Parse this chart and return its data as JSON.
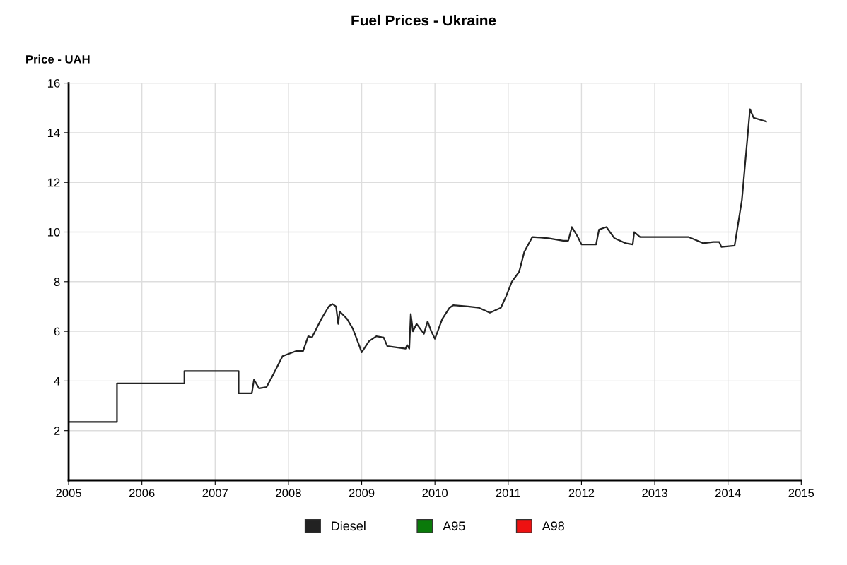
{
  "chart_data": {
    "type": "line",
    "title": "Fuel Prices - Ukraine",
    "ylabel": "Price - UAH",
    "xlim": [
      2005,
      2015
    ],
    "xticks": [
      2005,
      2006,
      2007,
      2008,
      2009,
      2010,
      2011,
      2012,
      2013,
      2014,
      2015
    ],
    "ylim": [
      0,
      16
    ],
    "yticks": [
      2,
      4,
      6,
      8,
      10,
      12,
      14,
      16
    ],
    "grid": true,
    "legend": "bottom",
    "marker": "none",
    "line_style": "solid",
    "series": [
      {
        "name": "Diesel",
        "color": "#222222",
        "x": [
          2005.0,
          2005.66,
          2005.66,
          2006.58,
          2006.58,
          2007.32,
          2007.32,
          2007.5,
          2007.53,
          2007.6,
          2007.7,
          2007.8,
          2007.92,
          2008.1,
          2008.2,
          2008.27,
          2008.32,
          2008.45,
          2008.55,
          2008.6,
          2008.65,
          2008.68,
          2008.7,
          2008.8,
          2008.88,
          2008.97,
          2009.0,
          2009.1,
          2009.2,
          2009.3,
          2009.35,
          2009.6,
          2009.62,
          2009.65,
          2009.67,
          2009.7,
          2009.75,
          2009.85,
          2009.9,
          2009.95,
          2010.0,
          2010.1,
          2010.2,
          2010.25,
          2010.45,
          2010.6,
          2010.75,
          2010.9,
          2010.97,
          2011.05,
          2011.15,
          2011.22,
          2011.33,
          2011.55,
          2011.75,
          2011.82,
          2011.87,
          2011.95,
          2012.0,
          2012.2,
          2012.24,
          2012.34,
          2012.45,
          2012.6,
          2012.7,
          2012.72,
          2012.8,
          2013.3,
          2013.46,
          2013.66,
          2013.8,
          2013.88,
          2013.91,
          2014.09,
          2014.12,
          2014.19,
          2014.3,
          2014.35,
          2014.52
        ],
        "values": [
          2.35,
          2.35,
          3.9,
          3.9,
          4.4,
          4.4,
          3.5,
          3.5,
          4.05,
          3.7,
          3.75,
          4.3,
          5.0,
          5.2,
          5.2,
          5.8,
          5.75,
          6.5,
          7.0,
          7.1,
          7.0,
          6.3,
          6.8,
          6.5,
          6.1,
          5.4,
          5.15,
          5.6,
          5.8,
          5.75,
          5.4,
          5.3,
          5.45,
          5.3,
          6.7,
          6.0,
          6.3,
          5.9,
          6.4,
          6.0,
          5.7,
          6.5,
          6.95,
          7.05,
          7.0,
          6.95,
          6.75,
          6.95,
          7.4,
          8.0,
          8.4,
          9.2,
          9.8,
          9.75,
          9.65,
          9.65,
          10.2,
          9.8,
          9.5,
          9.5,
          10.1,
          10.2,
          9.75,
          9.55,
          9.5,
          10.0,
          9.8,
          9.8,
          9.8,
          9.55,
          9.6,
          9.6,
          9.4,
          9.45,
          10.0,
          11.3,
          14.95,
          14.6,
          14.45
        ]
      },
      {
        "name": "A95",
        "color": "#0a7a0a"
      },
      {
        "name": "A98",
        "color": "#ee1111"
      }
    ]
  }
}
